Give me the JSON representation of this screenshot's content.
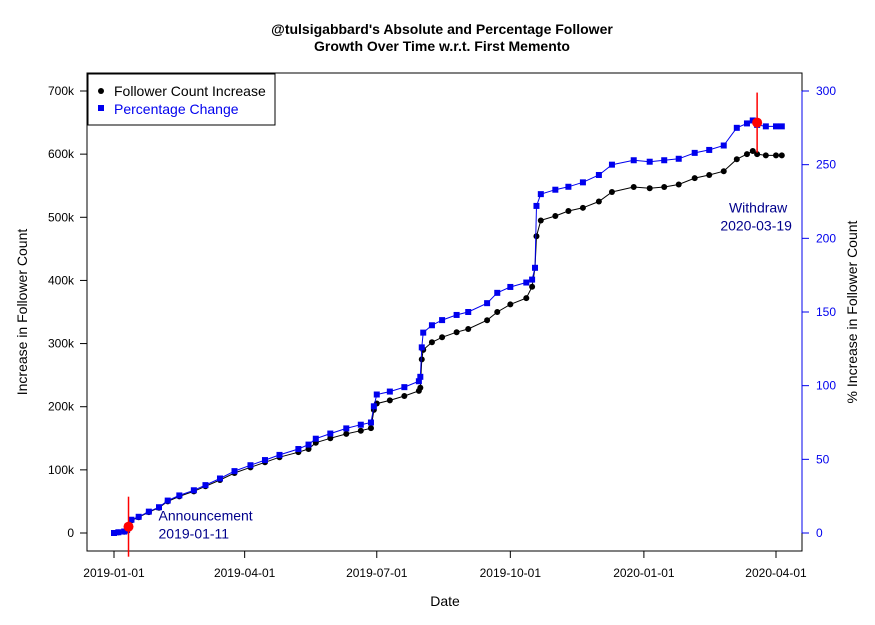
{
  "chart_data": {
    "type": "line",
    "title_line1": "@tulsigabbard's Absolute and Percentage Follower",
    "title_line2": "Growth Over Time w.r.t. First Memento",
    "xlabel": "Date",
    "ylabel_left": "Increase in Follower Count",
    "ylabel_right": "% Increase in Follower Count",
    "x_range": [
      "2019-01-01",
      "2020-04-10"
    ],
    "x_ticks": [
      "2019-01-01",
      "2019-04-01",
      "2019-07-01",
      "2019-10-01",
      "2020-01-01",
      "2020-04-01"
    ],
    "y_left_range": [
      0,
      700000
    ],
    "y_left_ticks": [
      0,
      100000,
      200000,
      300000,
      400000,
      500000,
      600000,
      700000
    ],
    "y_left_tick_labels": [
      "0",
      "100k",
      "200k",
      "300k",
      "400k",
      "500k",
      "600k",
      "700k"
    ],
    "y_right_range": [
      0,
      300
    ],
    "y_right_ticks": [
      0,
      50,
      100,
      150,
      200,
      250,
      300
    ],
    "y_right_tick_labels": [
      "0",
      "50",
      "100",
      "150",
      "200",
      "250",
      "300"
    ],
    "grid": false,
    "legend_position": "top-left",
    "series": [
      {
        "name": "Follower Count Increase",
        "axis": "left",
        "color": "#000000",
        "marker": "circle",
        "points": [
          [
            "2019-01-01",
            0
          ],
          [
            "2019-01-04",
            1000
          ],
          [
            "2019-01-08",
            2000
          ],
          [
            "2019-01-10",
            4000
          ],
          [
            "2019-01-11",
            10000
          ],
          [
            "2019-01-13",
            20000
          ],
          [
            "2019-01-18",
            25000
          ],
          [
            "2019-01-25",
            33000
          ],
          [
            "2019-02-01",
            40000
          ],
          [
            "2019-02-07",
            50000
          ],
          [
            "2019-02-15",
            58000
          ],
          [
            "2019-02-25",
            66000
          ],
          [
            "2019-03-05",
            74000
          ],
          [
            "2019-03-15",
            84000
          ],
          [
            "2019-03-25",
            95000
          ],
          [
            "2019-04-05",
            104000
          ],
          [
            "2019-04-15",
            112000
          ],
          [
            "2019-04-25",
            120000
          ],
          [
            "2019-05-08",
            128000
          ],
          [
            "2019-05-15",
            133000
          ],
          [
            "2019-05-20",
            143000
          ],
          [
            "2019-05-30",
            150000
          ],
          [
            "2019-06-10",
            157000
          ],
          [
            "2019-06-20",
            162000
          ],
          [
            "2019-06-27",
            166000
          ],
          [
            "2019-06-29",
            195000
          ],
          [
            "2019-07-01",
            205000
          ],
          [
            "2019-07-10",
            210000
          ],
          [
            "2019-07-20",
            217000
          ],
          [
            "2019-07-30",
            225000
          ],
          [
            "2019-07-31",
            230000
          ],
          [
            "2019-08-01",
            275000
          ],
          [
            "2019-08-02",
            290000
          ],
          [
            "2019-08-08",
            302000
          ],
          [
            "2019-08-15",
            310000
          ],
          [
            "2019-08-25",
            318000
          ],
          [
            "2019-09-02",
            323000
          ],
          [
            "2019-09-15",
            337000
          ],
          [
            "2019-09-22",
            350000
          ],
          [
            "2019-10-01",
            362000
          ],
          [
            "2019-10-12",
            372000
          ],
          [
            "2019-10-16",
            390000
          ],
          [
            "2019-10-18",
            420000
          ],
          [
            "2019-10-19",
            470000
          ],
          [
            "2019-10-22",
            495000
          ],
          [
            "2019-11-01",
            502000
          ],
          [
            "2019-11-10",
            510000
          ],
          [
            "2019-11-20",
            515000
          ],
          [
            "2019-12-01",
            525000
          ],
          [
            "2019-12-10",
            540000
          ],
          [
            "2019-12-25",
            548000
          ],
          [
            "2020-01-05",
            546000
          ],
          [
            "2020-01-15",
            548000
          ],
          [
            "2020-01-25",
            552000
          ],
          [
            "2020-02-05",
            562000
          ],
          [
            "2020-02-15",
            567000
          ],
          [
            "2020-02-25",
            573000
          ],
          [
            "2020-03-05",
            592000
          ],
          [
            "2020-03-12",
            600000
          ],
          [
            "2020-03-16",
            605000
          ],
          [
            "2020-03-19",
            600000
          ],
          [
            "2020-03-25",
            598000
          ],
          [
            "2020-04-01",
            598000
          ],
          [
            "2020-04-05",
            598000
          ]
        ]
      },
      {
        "name": "Percentage Change",
        "axis": "right",
        "color": "#0000ee",
        "marker": "square",
        "points": [
          [
            "2019-01-01",
            0
          ],
          [
            "2019-01-04",
            0.5
          ],
          [
            "2019-01-08",
            1
          ],
          [
            "2019-01-10",
            2
          ],
          [
            "2019-01-11",
            4.5
          ],
          [
            "2019-01-13",
            9
          ],
          [
            "2019-01-18",
            11
          ],
          [
            "2019-01-25",
            14.5
          ],
          [
            "2019-02-01",
            17.5
          ],
          [
            "2019-02-07",
            22
          ],
          [
            "2019-02-15",
            25.5
          ],
          [
            "2019-02-25",
            29
          ],
          [
            "2019-03-05",
            32.5
          ],
          [
            "2019-03-15",
            37
          ],
          [
            "2019-03-25",
            42
          ],
          [
            "2019-04-05",
            46
          ],
          [
            "2019-04-15",
            49.5
          ],
          [
            "2019-04-25",
            53
          ],
          [
            "2019-05-08",
            57
          ],
          [
            "2019-05-15",
            60
          ],
          [
            "2019-05-20",
            64
          ],
          [
            "2019-05-30",
            67.5
          ],
          [
            "2019-06-10",
            71
          ],
          [
            "2019-06-20",
            73.5
          ],
          [
            "2019-06-27",
            75
          ],
          [
            "2019-06-29",
            86
          ],
          [
            "2019-07-01",
            94
          ],
          [
            "2019-07-10",
            96
          ],
          [
            "2019-07-20",
            99
          ],
          [
            "2019-07-30",
            103
          ],
          [
            "2019-07-31",
            106
          ],
          [
            "2019-08-01",
            126
          ],
          [
            "2019-08-02",
            136
          ],
          [
            "2019-08-08",
            141
          ],
          [
            "2019-08-15",
            144.5
          ],
          [
            "2019-08-25",
            148
          ],
          [
            "2019-09-02",
            150
          ],
          [
            "2019-09-15",
            156
          ],
          [
            "2019-09-22",
            163
          ],
          [
            "2019-10-01",
            167
          ],
          [
            "2019-10-12",
            170
          ],
          [
            "2019-10-16",
            172
          ],
          [
            "2019-10-18",
            180
          ],
          [
            "2019-10-19",
            222
          ],
          [
            "2019-10-22",
            230
          ],
          [
            "2019-11-01",
            233
          ],
          [
            "2019-11-10",
            235
          ],
          [
            "2019-11-20",
            238
          ],
          [
            "2019-12-01",
            243
          ],
          [
            "2019-12-10",
            250
          ],
          [
            "2019-12-25",
            253
          ],
          [
            "2020-01-05",
            252
          ],
          [
            "2020-01-15",
            253
          ],
          [
            "2020-01-25",
            254
          ],
          [
            "2020-02-05",
            258
          ],
          [
            "2020-02-15",
            260
          ],
          [
            "2020-02-25",
            263
          ],
          [
            "2020-03-05",
            275
          ],
          [
            "2020-03-12",
            278
          ],
          [
            "2020-03-16",
            280
          ],
          [
            "2020-03-19",
            277
          ],
          [
            "2020-03-25",
            276
          ],
          [
            "2020-04-01",
            276
          ],
          [
            "2020-04-05",
            276
          ]
        ]
      }
    ],
    "events": [
      {
        "label": "Announcement",
        "date_label": "2019-01-11",
        "date": "2019-01-11",
        "value": 10000,
        "color": "#ff0000",
        "text_color": "#00008b",
        "text_position": "below-right"
      },
      {
        "label": "Withdraw",
        "date_label": "2020-03-19",
        "date": "2020-03-19",
        "value": 650000,
        "color": "#ff0000",
        "text_color": "#00008b",
        "text_position": "below-left"
      }
    ]
  }
}
